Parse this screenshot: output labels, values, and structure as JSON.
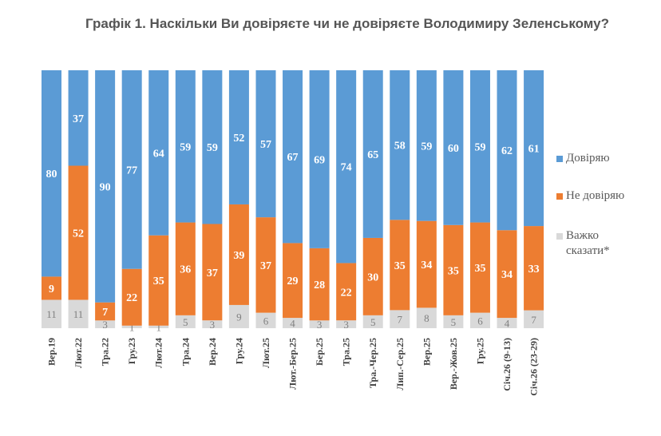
{
  "chart_data": {
    "type": "bar",
    "stacked": true,
    "percent_stacked": true,
    "title": "Графік 1. Наскільки Ви довіряєте чи не довіряєте Володимиру Зеленському?",
    "categories": [
      "Вер.19",
      "Лют.22",
      "Тра.22",
      "Гру.23",
      "Лют.24",
      "Тра.24",
      "Вер.24",
      "Гру.24",
      "Лют.25",
      "Лют.-Бер.25",
      "Бер.25",
      "Тра.25",
      "Тра.-Чер.25",
      "Лип.-Сер.25",
      "Вер.25",
      "Вер.-Жов.25",
      "Гру.25",
      "Січ.26 (9-13)",
      "Січ.26 (23-29)"
    ],
    "series": [
      {
        "name": "Важко сказати*",
        "color": "#d9d9d9",
        "label_color": "#808080",
        "values": [
          11,
          11,
          3,
          1,
          1,
          5,
          3,
          9,
          6,
          4,
          3,
          3,
          5,
          7,
          8,
          5,
          6,
          4,
          7
        ]
      },
      {
        "name": "Не довіряю",
        "color": "#ed7d31",
        "label_color": "#ffffff",
        "values": [
          9,
          52,
          7,
          22,
          35,
          36,
          37,
          39,
          37,
          29,
          28,
          22,
          30,
          35,
          34,
          35,
          35,
          34,
          33
        ]
      },
      {
        "name": "Довіряю",
        "color": "#5b9bd5",
        "label_color": "#ffffff",
        "values": [
          80,
          37,
          90,
          77,
          64,
          59,
          59,
          52,
          57,
          67,
          69,
          74,
          65,
          58,
          59,
          60,
          59,
          62,
          61
        ]
      }
    ],
    "legend_order": [
      "Довіряю",
      "Не довіряю",
      "Важко сказати*"
    ],
    "legend_position": "right",
    "grid": false
  },
  "legend": {
    "trust": "Довіряю",
    "distrust": "Не довіряю",
    "hard_line1": "Важко",
    "hard_line2": "сказати*"
  }
}
